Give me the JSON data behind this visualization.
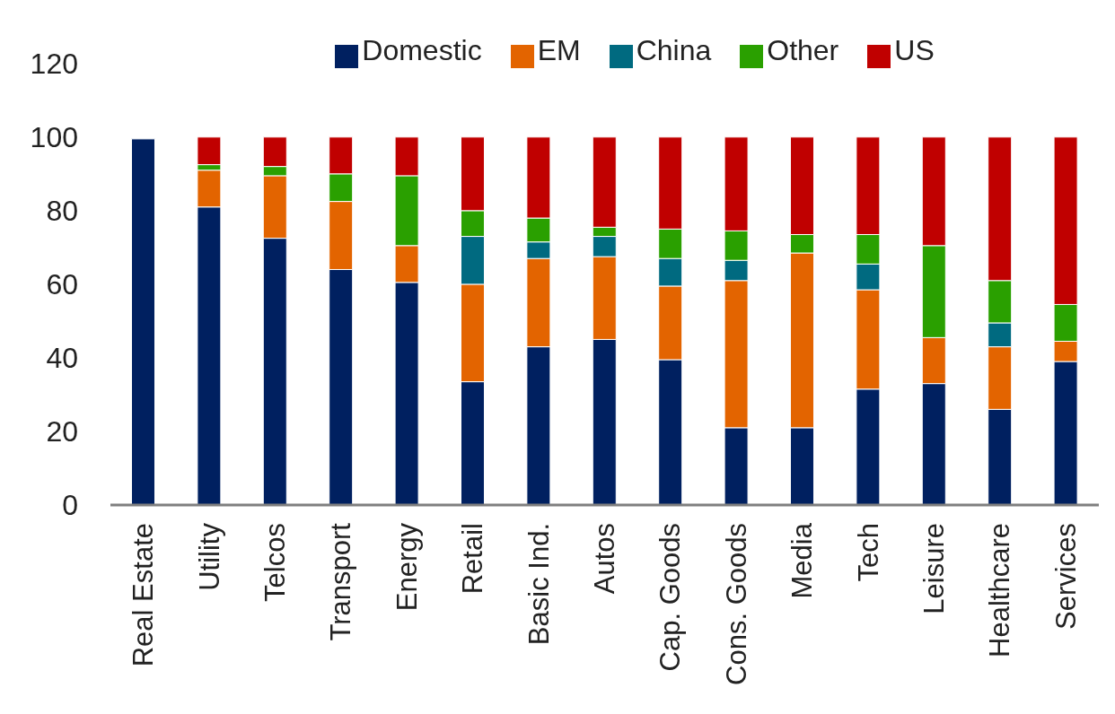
{
  "chart_data": {
    "type": "bar",
    "stacked": true,
    "categories": [
      "Real Estate",
      "Utility",
      "Telcos",
      "Transport",
      "Energy",
      "Retail",
      "Basic Ind.",
      "Autos",
      "Cap. Goods",
      "Cons. Goods",
      "Media",
      "Tech",
      "Leisure",
      "Healthcare",
      "Services"
    ],
    "series": [
      {
        "name": "Domestic",
        "color": "#002060",
        "values": [
          99.5,
          81,
          72.5,
          64,
          60.5,
          33.5,
          43,
          45,
          39.5,
          21,
          21,
          31.5,
          33,
          26,
          39
        ]
      },
      {
        "name": "EM",
        "color": "#e36400",
        "values": [
          0,
          10,
          17,
          18.5,
          10,
          26.5,
          24,
          22.5,
          20,
          40,
          47.5,
          27,
          12.5,
          17,
          5.5
        ]
      },
      {
        "name": "China",
        "color": "#006a80",
        "values": [
          0,
          0,
          0,
          0,
          0,
          13,
          4.5,
          5.5,
          7.5,
          5.5,
          0,
          7,
          0,
          6.5,
          0
        ]
      },
      {
        "name": "Other",
        "color": "#2aa000",
        "values": [
          0,
          1.5,
          2.5,
          7.5,
          19,
          7,
          6.5,
          2.5,
          8,
          8,
          5,
          8,
          25,
          11.5,
          10
        ]
      },
      {
        "name": "US",
        "color": "#c00000",
        "values": [
          0,
          7.5,
          8,
          10,
          10.5,
          20,
          22,
          24.5,
          25,
          25.5,
          26.5,
          26.5,
          29.5,
          39,
          45.5
        ]
      }
    ],
    "ylim": [
      0,
      120
    ],
    "yticks": [
      0,
      20,
      40,
      60,
      80,
      100,
      120
    ],
    "grid": false,
    "legend": "top"
  }
}
